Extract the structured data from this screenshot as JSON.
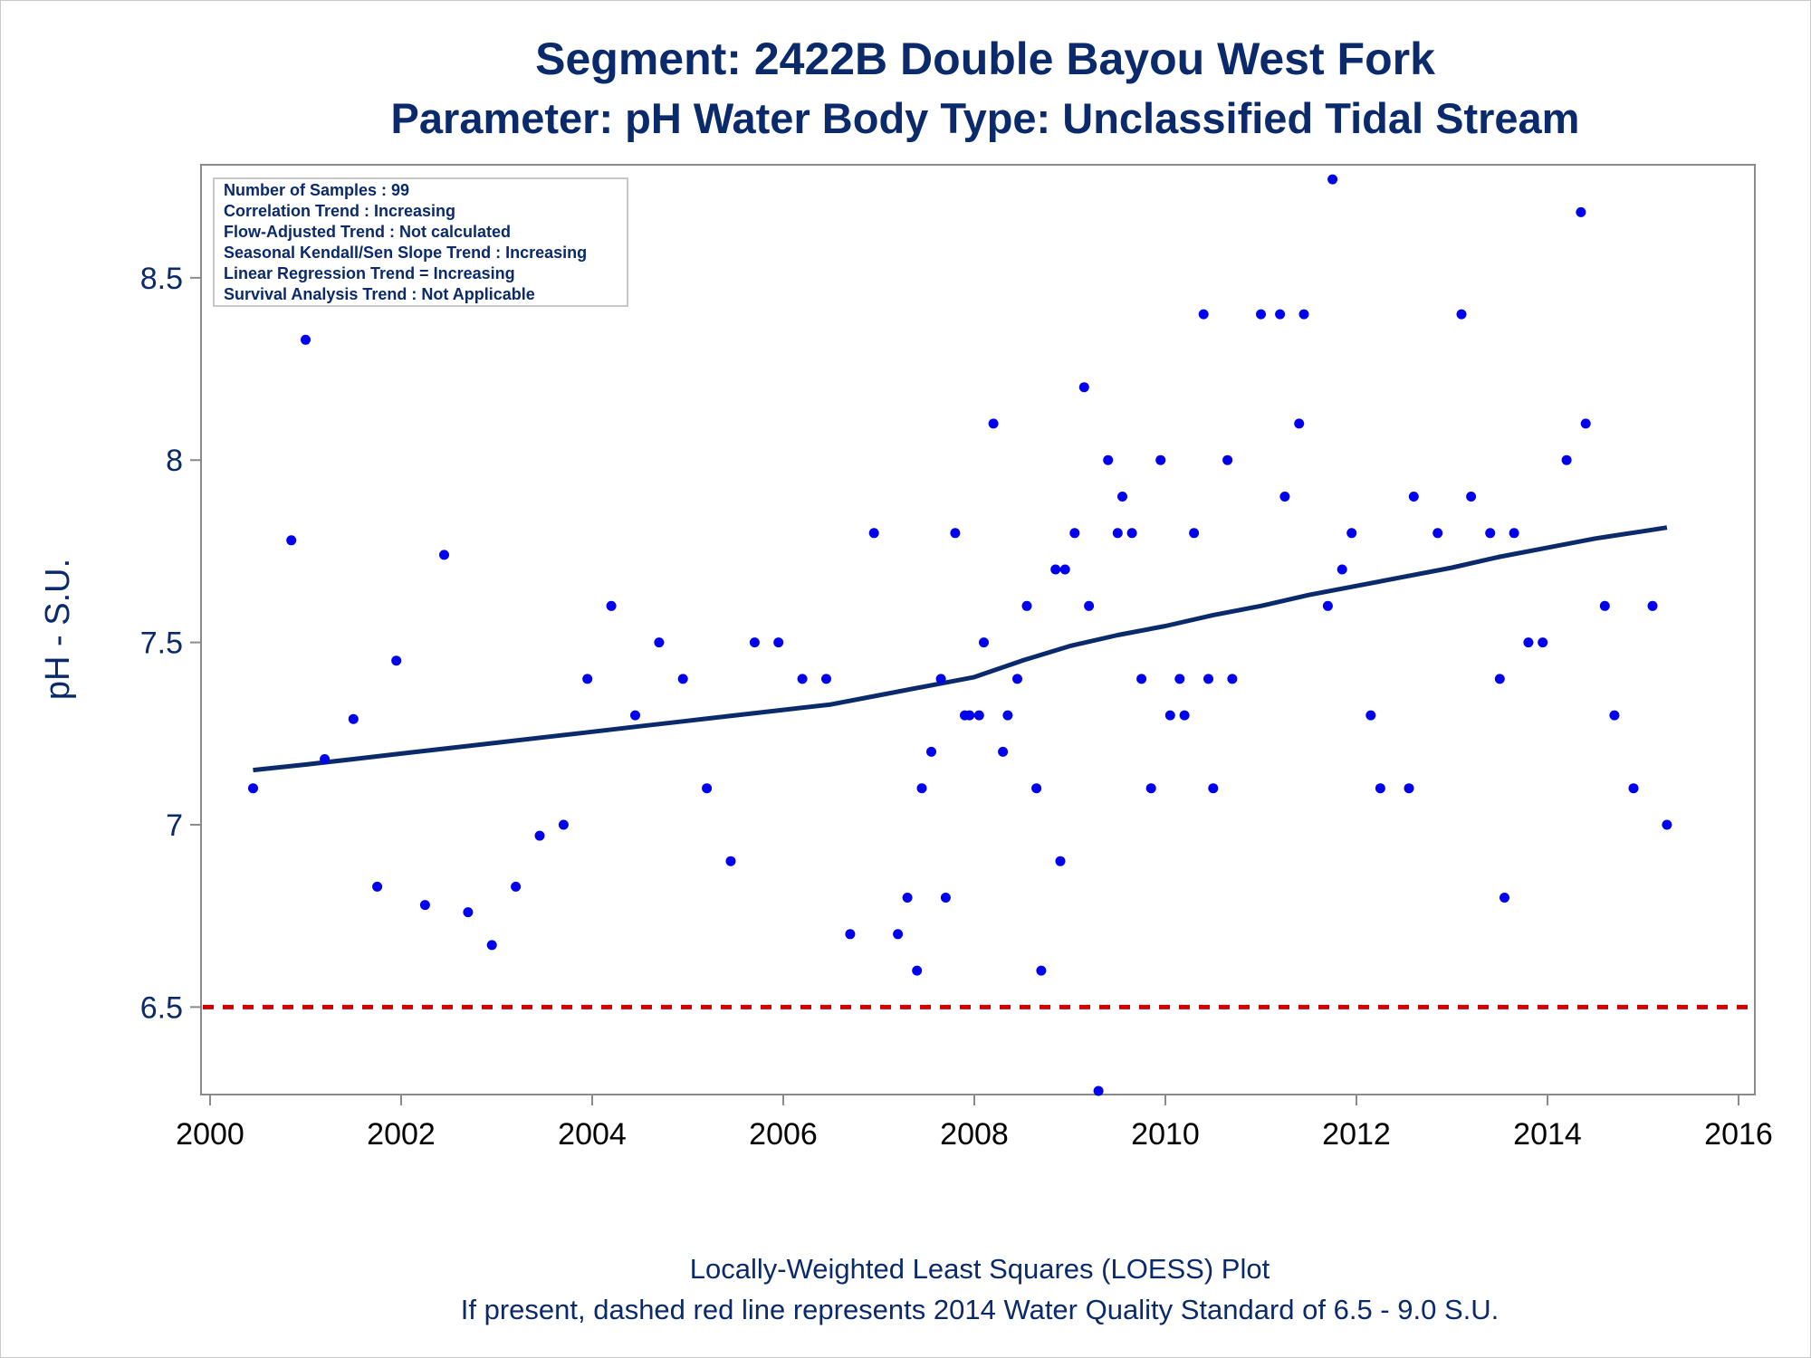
{
  "chart_data": {
    "type": "scatter",
    "title": "Segment: 2422B  Double Bayou West Fork",
    "subtitle": "Parameter: pH   Water Body Type: Unclassified Tidal Stream",
    "xlabel": "",
    "ylabel": "pH - S.U.",
    "xlim": [
      2000,
      2016
    ],
    "ylim": [
      6.26,
      8.81
    ],
    "x_ticks": [
      2000,
      2002,
      2004,
      2006,
      2008,
      2010,
      2012,
      2014,
      2016
    ],
    "y_ticks": [
      6.5,
      7,
      7.5,
      8,
      8.5
    ],
    "x_tick_labels": [
      "2000",
      "2002",
      "2004",
      "2006",
      "2008",
      "2010",
      "2012",
      "2014",
      "2016"
    ],
    "y_tick_labels": [
      "6.5",
      "7",
      "7.5",
      "8",
      "8.5"
    ],
    "grid": false,
    "legend": "none",
    "inset_box": {
      "placement": "top-left",
      "lines": [
        "Number of Samples : 99",
        "Correlation Trend : Increasing",
        "Flow-Adjusted Trend : Not calculated",
        "Seasonal Kendall/Sen Slope Trend : Increasing",
        "Linear Regression Trend = Increasing",
        "Survival Analysis Trend : Not Applicable"
      ]
    },
    "footnotes": [
      "Locally-Weighted Least Squares (LOESS) Plot",
      "If present, dashed red line represents 2014 Water Quality Standard of 6.5 - 9.0 S.U."
    ],
    "reference_line": {
      "y": 6.5,
      "style": "dashed",
      "color": "#d00000"
    },
    "series": [
      {
        "kind": "points",
        "color": "#0000ee",
        "points": [
          [
            2000.45,
            7.1
          ],
          [
            2000.85,
            7.78
          ],
          [
            2001.0,
            8.33
          ],
          [
            2001.2,
            7.18
          ],
          [
            2001.5,
            7.29
          ],
          [
            2001.75,
            6.83
          ],
          [
            2001.95,
            7.45
          ],
          [
            2002.25,
            6.78
          ],
          [
            2002.45,
            7.74
          ],
          [
            2002.7,
            6.76
          ],
          [
            2002.95,
            6.67
          ],
          [
            2003.2,
            6.83
          ],
          [
            2003.45,
            6.97
          ],
          [
            2003.7,
            7.0
          ],
          [
            2003.95,
            7.4
          ],
          [
            2004.2,
            7.6
          ],
          [
            2004.45,
            7.3
          ],
          [
            2004.7,
            7.5
          ],
          [
            2004.95,
            7.4
          ],
          [
            2005.2,
            7.1
          ],
          [
            2005.45,
            6.9
          ],
          [
            2005.7,
            7.5
          ],
          [
            2005.95,
            7.5
          ],
          [
            2006.2,
            7.4
          ],
          [
            2006.45,
            7.4
          ],
          [
            2006.7,
            6.7
          ],
          [
            2006.95,
            7.8
          ],
          [
            2007.2,
            6.7
          ],
          [
            2007.3,
            6.8
          ],
          [
            2007.4,
            6.6
          ],
          [
            2007.45,
            7.1
          ],
          [
            2007.55,
            7.2
          ],
          [
            2007.65,
            7.4
          ],
          [
            2007.7,
            6.8
          ],
          [
            2007.8,
            7.8
          ],
          [
            2007.9,
            7.3
          ],
          [
            2007.95,
            7.3
          ],
          [
            2008.05,
            7.3
          ],
          [
            2008.1,
            7.5
          ],
          [
            2008.2,
            8.1
          ],
          [
            2008.3,
            7.2
          ],
          [
            2008.35,
            7.3
          ],
          [
            2008.45,
            7.4
          ],
          [
            2008.55,
            7.6
          ],
          [
            2008.65,
            7.1
          ],
          [
            2008.7,
            6.6
          ],
          [
            2008.85,
            7.7
          ],
          [
            2008.9,
            6.9
          ],
          [
            2008.95,
            7.7
          ],
          [
            2009.05,
            7.8
          ],
          [
            2009.15,
            8.2
          ],
          [
            2009.2,
            7.6
          ],
          [
            2009.3,
            6.27
          ],
          [
            2009.4,
            8.0
          ],
          [
            2009.5,
            7.8
          ],
          [
            2009.55,
            7.9
          ],
          [
            2009.65,
            7.8
          ],
          [
            2009.75,
            7.4
          ],
          [
            2009.85,
            7.1
          ],
          [
            2009.95,
            8.0
          ],
          [
            2010.05,
            7.3
          ],
          [
            2010.15,
            7.4
          ],
          [
            2010.2,
            7.3
          ],
          [
            2010.3,
            7.8
          ],
          [
            2010.4,
            8.4
          ],
          [
            2010.45,
            7.4
          ],
          [
            2010.5,
            7.1
          ],
          [
            2010.65,
            8.0
          ],
          [
            2010.7,
            7.4
          ],
          [
            2011.0,
            8.4
          ],
          [
            2011.2,
            8.4
          ],
          [
            2011.25,
            7.9
          ],
          [
            2011.4,
            8.1
          ],
          [
            2011.45,
            8.4
          ],
          [
            2011.7,
            7.6
          ],
          [
            2011.75,
            8.77
          ],
          [
            2011.85,
            7.7
          ],
          [
            2011.95,
            7.8
          ],
          [
            2012.15,
            7.3
          ],
          [
            2012.25,
            7.1
          ],
          [
            2012.55,
            7.1
          ],
          [
            2012.6,
            7.9
          ],
          [
            2012.85,
            7.8
          ],
          [
            2013.1,
            8.4
          ],
          [
            2013.2,
            7.9
          ],
          [
            2013.4,
            7.8
          ],
          [
            2013.5,
            7.4
          ],
          [
            2013.55,
            6.8
          ],
          [
            2013.65,
            7.8
          ],
          [
            2013.8,
            7.5
          ],
          [
            2013.95,
            7.5
          ],
          [
            2014.2,
            8.0
          ],
          [
            2014.35,
            8.68
          ],
          [
            2014.4,
            8.1
          ],
          [
            2014.6,
            7.6
          ],
          [
            2014.7,
            7.3
          ],
          [
            2014.9,
            7.1
          ],
          [
            2015.1,
            7.6
          ],
          [
            2015.25,
            7.0
          ]
        ]
      },
      {
        "kind": "loess",
        "color": "#0b2a6b",
        "points": [
          [
            2000.45,
            7.15
          ],
          [
            2001.0,
            7.165
          ],
          [
            2001.5,
            7.18
          ],
          [
            2002.0,
            7.195
          ],
          [
            2002.5,
            7.21
          ],
          [
            2003.0,
            7.225
          ],
          [
            2003.5,
            7.24
          ],
          [
            2004.0,
            7.255
          ],
          [
            2004.5,
            7.27
          ],
          [
            2005.0,
            7.285
          ],
          [
            2005.5,
            7.3
          ],
          [
            2006.0,
            7.315
          ],
          [
            2006.5,
            7.33
          ],
          [
            2007.0,
            7.355
          ],
          [
            2007.5,
            7.38
          ],
          [
            2008.0,
            7.405
          ],
          [
            2008.5,
            7.45
          ],
          [
            2009.0,
            7.49
          ],
          [
            2009.5,
            7.52
          ],
          [
            2010.0,
            7.545
          ],
          [
            2010.5,
            7.575
          ],
          [
            2011.0,
            7.6
          ],
          [
            2011.5,
            7.63
          ],
          [
            2012.0,
            7.655
          ],
          [
            2012.5,
            7.68
          ],
          [
            2013.0,
            7.705
          ],
          [
            2013.5,
            7.735
          ],
          [
            2014.0,
            7.76
          ],
          [
            2014.5,
            7.785
          ],
          [
            2015.0,
            7.805
          ],
          [
            2015.25,
            7.815
          ]
        ]
      }
    ]
  }
}
